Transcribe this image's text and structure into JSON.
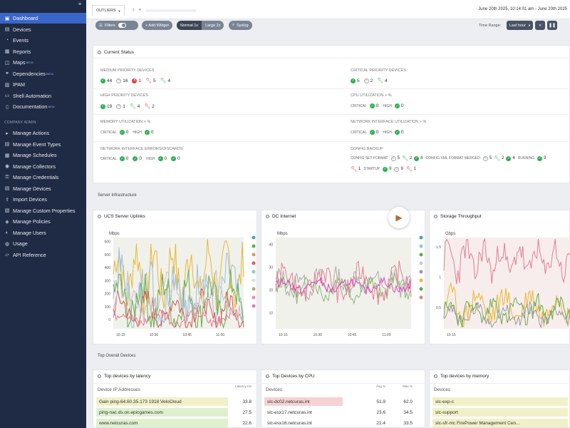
{
  "sidebar": {
    "items": [
      {
        "label": "Dashboard",
        "icon": "dashboard-icon",
        "active": true
      },
      {
        "label": "Devices",
        "icon": "devices-icon"
      },
      {
        "label": "Events",
        "icon": "events-icon"
      },
      {
        "label": "Reports",
        "icon": "reports-icon"
      },
      {
        "label": "Maps",
        "icon": "maps-icon",
        "badge": "BETA"
      },
      {
        "label": "Dependencies",
        "icon": "dependencies-icon",
        "badge": "BETA"
      },
      {
        "label": "IPAM",
        "icon": "ipam-icon"
      },
      {
        "label": "Shell Automation",
        "icon": "shell-icon"
      },
      {
        "label": "Documentation",
        "icon": "documentation-icon",
        "badge": "NEW"
      }
    ],
    "section_label": "COMPANY ADMIN",
    "admin_items": [
      {
        "label": "Manage Actions",
        "icon": "actions-icon"
      },
      {
        "label": "Manage Event Types",
        "icon": "event-types-icon"
      },
      {
        "label": "Manage Schedules",
        "icon": "schedules-icon"
      },
      {
        "label": "Manage Collectors",
        "icon": "collectors-icon"
      },
      {
        "label": "Manage Credentials",
        "icon": "credentials-icon"
      },
      {
        "label": "Manage Devices",
        "icon": "manage-devices-icon"
      },
      {
        "label": "Import Devices",
        "icon": "import-icon"
      },
      {
        "label": "Manage Custom Properties",
        "icon": "custom-properties-icon"
      },
      {
        "label": "Manage Policies",
        "icon": "policies-icon"
      },
      {
        "label": "Manage Users",
        "icon": "users-icon"
      },
      {
        "label": "Usage",
        "icon": "usage-icon"
      },
      {
        "label": "API Reference",
        "icon": "api-icon"
      }
    ]
  },
  "topbar": {
    "tab_label": "OUTLIERS",
    "date_range": "June 20th 2025, 10:14:01 am - June 20th 2025"
  },
  "toolbar": {
    "filters_label": "Filters",
    "add_widget_label": "+ Add Widget",
    "normal_label": "Normal 1x",
    "large_label": "Large 2x",
    "syslog_label": "Syslog",
    "time_range_label": "Time Range:",
    "time_range_value": "Last hour"
  },
  "current_status": {
    "title": "Current Status",
    "medium_priority": {
      "label": "MEDIUM PRIORITY DEVICES",
      "ok": "44",
      "none": "16",
      "err": "1",
      "warn_red": "5",
      "warn_green": "4"
    },
    "high_priority": {
      "label": "HIGH PRIORITY DEVICES",
      "ok": "19",
      "none": "1",
      "warn_green": "4",
      "warn_red": "2"
    },
    "memory": {
      "label": "MEMORY UTILIZATION > %",
      "critical_label": "CRITICAL",
      "critical": "0",
      "high_label": "HIGH",
      "high": "0"
    },
    "nic_errors": {
      "label": "NETWORK INTERFACE ERRORS/DISCARDS",
      "critical_label": "CRITICAL",
      "c1": "0",
      "c2": "0",
      "high_label": "HIGH",
      "h1": "0",
      "h2": "0"
    },
    "critical_priority": {
      "label": "CRITICAL PRIORITY DEVICES",
      "ok": "5",
      "none": "2",
      "warn_green": "4"
    },
    "cpu": {
      "label": "CPU UTILIZATION > %",
      "critical_label": "CRITICAL",
      "critical": "0",
      "high_label": "HIGH",
      "high": "0"
    },
    "nic_util": {
      "label": "NETWORK INTERFACE UTILIZATION > %",
      "critical_label": "CRITICAL",
      "critical": "0",
      "high_label": "HIGH",
      "high": "0"
    },
    "config_backup": {
      "label": "CONFIG BACKUP",
      "set_format_label": "CONFIG SET FORMAT",
      "sf_none": "5",
      "sf_green": "2",
      "sf_ok": "4",
      "xml_label": "CONFIG XML FORMAT MERGED",
      "xml_none": "5",
      "xml_green": "2",
      "xml_ok": "4",
      "running_label": "RUNNING",
      "running_ok": "9",
      "r_red": "1",
      "startup_label": "STARTUP",
      "startup_ok": "9",
      "startup_none": "9",
      "startup_red": "1"
    }
  },
  "server_infra": {
    "title": "Server Infrastructure",
    "charts": [
      {
        "title": "UCS Server Uplinks",
        "unit": "Mbps",
        "yticks": [
          "600",
          "500",
          "400",
          "300",
          "200",
          "100",
          "0"
        ],
        "xticks": [
          "10:15",
          "10:30",
          "10:45",
          "11:00"
        ]
      },
      {
        "title": "DC Internet",
        "unit": "Mbps",
        "yticks": [
          "40",
          "30",
          "20",
          "10"
        ],
        "xticks": [
          "10:15",
          "10:30",
          "10:45",
          "11:00"
        ]
      },
      {
        "title": "Storage Throughput",
        "unit": "Gbps",
        "yticks": [
          "1.5",
          "1",
          "0.5"
        ],
        "xticks": [
          "10:15"
        ]
      }
    ]
  },
  "top_devices": {
    "title": "Top Overall Devices",
    "latency": {
      "title": "Top devices by latency",
      "col_name": "Device IP Addresses",
      "col_value": "Latency ms",
      "rows": [
        {
          "name": "Gain ping-64.60.35.173 1918 VeloCloud",
          "value": "33.8",
          "color": "#f2f0c8"
        },
        {
          "name": "ping-nac.ds.on.epicgames.com",
          "value": "27.5",
          "color": "#dff0cf"
        },
        {
          "name": "www.netcuras.com",
          "value": "22.6",
          "color": "#dff0cf"
        }
      ]
    },
    "cpu": {
      "title": "Top Devices by CPU",
      "col_name": "Devices",
      "col_avg": "Avg %",
      "col_max": "Max %",
      "rows": [
        {
          "name": "slc-dc02.netcuras.int",
          "avg": "51.9",
          "max": "62.0",
          "color": "#f6d2d2"
        },
        {
          "name": "slc-esx17.netcuras.int",
          "avg": "23.6",
          "max": "34.5",
          "color": ""
        },
        {
          "name": "slc-esx16.netcuras.int",
          "avg": "21.4",
          "max": "33.5",
          "color": ""
        }
      ]
    },
    "memory": {
      "title": "Top devices by memory",
      "col_name": "Devices",
      "rows": [
        {
          "name": "slc-exp-c",
          "color": "#f2f0c8"
        },
        {
          "name": "slc-support",
          "color": "#f2f0c8"
        },
        {
          "name": "slc-sfr-mc FirePower Management Cen...",
          "color": "#f2f0c8"
        }
      ]
    }
  }
}
